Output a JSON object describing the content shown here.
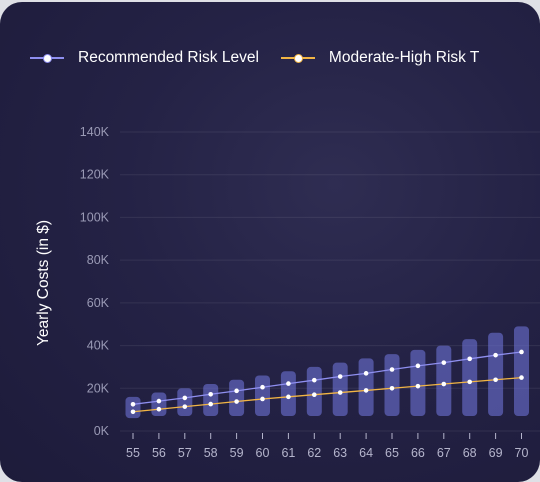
{
  "chart_data": {
    "type": "bar",
    "title": "",
    "xlabel": "",
    "ylabel": "Yearly Costs (in $)",
    "ylim": [
      0,
      140000
    ],
    "yticks": [
      "0K",
      "20K",
      "40K",
      "60K",
      "80K",
      "100K",
      "120K",
      "140K"
    ],
    "ytick_values": [
      0,
      20000,
      40000,
      60000,
      80000,
      100000,
      120000,
      140000
    ],
    "grid": true,
    "legend_position": "top-left",
    "categories": [
      "55",
      "56",
      "57",
      "58",
      "59",
      "60",
      "61",
      "62",
      "63",
      "64",
      "65",
      "66",
      "67",
      "68",
      "69",
      "70"
    ],
    "range_bars": {
      "low": [
        6000,
        7000,
        7000,
        7000,
        7000,
        7000,
        7000,
        7000,
        7000,
        7000,
        7000,
        7000,
        7000,
        7000,
        7000,
        7000
      ],
      "high": [
        16000,
        18000,
        20000,
        22000,
        24000,
        26000,
        28000,
        30000,
        32000,
        34000,
        36000,
        38000,
        40000,
        43000,
        46000,
        49000
      ],
      "color": "#6b6fd0"
    },
    "series": [
      {
        "name": "Recommended Risk Level",
        "color": "#8f8ff0",
        "values": [
          12500,
          14000,
          15500,
          17200,
          18800,
          20500,
          22200,
          23800,
          25500,
          27000,
          28800,
          30500,
          32000,
          33800,
          35500,
          37000
        ]
      },
      {
        "name": "Moderate-High Risk T",
        "color": "#f2b544",
        "values": [
          9000,
          10200,
          11400,
          12600,
          13800,
          15000,
          16000,
          17000,
          18000,
          19000,
          20000,
          21000,
          22000,
          23000,
          24000,
          25000
        ]
      }
    ]
  }
}
